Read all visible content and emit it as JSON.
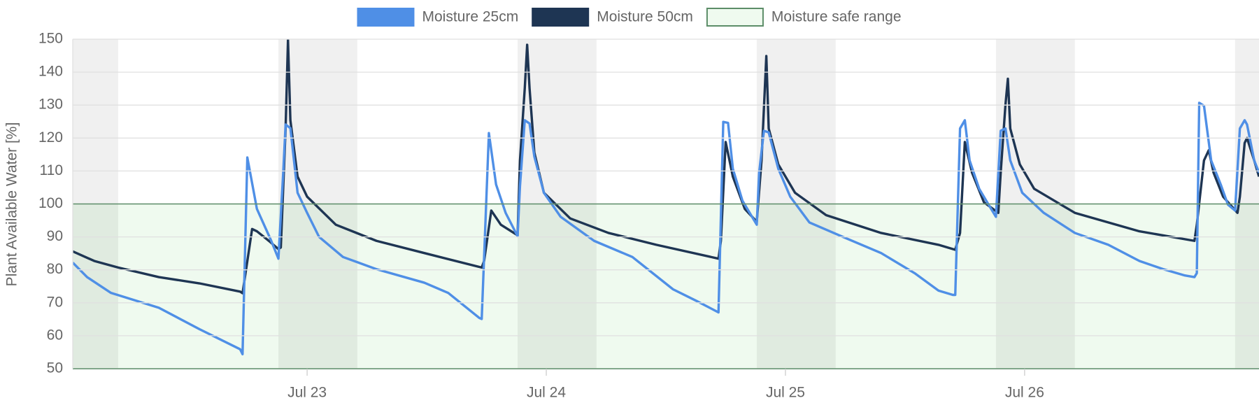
{
  "chart_data": {
    "type": "line",
    "y_label": "Plant Available Water [%]",
    "xlim": [
      22.02,
      26.98
    ],
    "xticks": [
      {
        "value": 23,
        "label": "Jul 23"
      },
      {
        "value": 24,
        "label": "Jul 24"
      },
      {
        "value": 25,
        "label": "Jul 25"
      },
      {
        "value": 26,
        "label": "Jul 26"
      }
    ],
    "ylim": [
      50,
      150
    ],
    "yticks": [
      50,
      60,
      70,
      80,
      90,
      100,
      110,
      120,
      130,
      140,
      150
    ],
    "grid": true,
    "legend": "top",
    "night_color": "rgba(0,0,0,0.06)",
    "night_bands": [
      [
        21.88,
        22.21
      ],
      [
        22.88,
        23.21
      ],
      [
        23.88,
        24.21
      ],
      [
        24.88,
        25.21
      ],
      [
        25.88,
        26.21
      ],
      [
        26.88,
        27.21
      ]
    ],
    "safe_range": {
      "name": "Moisture safe range",
      "color": "#effaef",
      "edge": "#5c8d68",
      "range": [
        50,
        100
      ]
    },
    "series": [
      {
        "name": "Moisture 25cm",
        "color": "#4f8fe6",
        "x": [
          22.02,
          22.08,
          22.18,
          22.38,
          22.55,
          22.72,
          22.73,
          22.75,
          22.79,
          22.85,
          22.88,
          22.9,
          22.91,
          22.93,
          22.96,
          23.0,
          23.05,
          23.15,
          23.29,
          23.49,
          23.59,
          23.72,
          23.73,
          23.76,
          23.79,
          23.83,
          23.88,
          23.89,
          23.91,
          23.93,
          23.95,
          23.99,
          24.06,
          24.2,
          24.36,
          24.53,
          24.63,
          24.72,
          24.74,
          24.76,
          24.78,
          24.82,
          24.88,
          24.89,
          24.91,
          24.93,
          24.97,
          25.02,
          25.1,
          25.24,
          25.4,
          25.54,
          25.64,
          25.7,
          25.71,
          25.73,
          25.75,
          25.77,
          25.81,
          25.86,
          25.88,
          25.9,
          25.92,
          25.94,
          25.99,
          26.08,
          26.21,
          26.35,
          26.48,
          26.58,
          26.67,
          26.71,
          26.72,
          26.73,
          26.75,
          26.78,
          26.82,
          26.85,
          26.88,
          26.9,
          26.92,
          26.93,
          26.96,
          26.98
        ],
        "values": [
          82.2,
          77.8,
          73,
          68.5,
          62,
          55.9,
          54.4,
          114.1,
          98.5,
          88.8,
          83.4,
          109.5,
          124.1,
          123,
          103.4,
          97.3,
          90,
          83.9,
          80.2,
          76.1,
          73,
          65.4,
          65.1,
          121.5,
          105.9,
          97.3,
          90.2,
          105.4,
          125.4,
          124.4,
          114.4,
          103.4,
          96.1,
          88.8,
          83.9,
          74.1,
          70.5,
          67.1,
          124.9,
          124.6,
          110.7,
          101,
          93.7,
          109.5,
          122.2,
          121.7,
          110.7,
          102.2,
          94.4,
          90,
          85.1,
          79,
          73.7,
          72.4,
          72.4,
          122.9,
          125.4,
          113.2,
          104.6,
          98.5,
          96.1,
          122.2,
          122.9,
          113.2,
          103.4,
          97.3,
          91.2,
          87.6,
          82.7,
          80.2,
          78.3,
          77.8,
          79,
          130.7,
          129.8,
          113.2,
          105.9,
          99.8,
          98,
          122.9,
          125.4,
          124.1,
          113.2,
          109.5
        ]
      },
      {
        "name": "Moisture 50cm",
        "color": "#1e3553",
        "x": [
          22.02,
          22.11,
          22.21,
          22.38,
          22.55,
          22.72,
          22.73,
          22.77,
          22.79,
          22.84,
          22.88,
          22.89,
          22.91,
          22.92,
          22.93,
          22.96,
          23.0,
          23.12,
          23.29,
          23.49,
          23.73,
          23.74,
          23.77,
          23.81,
          23.88,
          23.89,
          23.91,
          23.92,
          23.93,
          23.95,
          23.99,
          24.1,
          24.26,
          24.46,
          24.72,
          24.73,
          24.75,
          24.78,
          24.83,
          24.88,
          24.9,
          24.92,
          24.93,
          24.97,
          25.04,
          25.17,
          25.4,
          25.64,
          25.71,
          25.73,
          25.75,
          25.78,
          25.83,
          25.89,
          25.9,
          25.92,
          25.93,
          25.94,
          25.98,
          26.04,
          26.21,
          26.48,
          26.71,
          26.72,
          26.75,
          26.77,
          26.79,
          26.83,
          26.89,
          26.9,
          26.92,
          26.93,
          26.96,
          26.98
        ],
        "values": [
          85.6,
          82.7,
          80.7,
          77.8,
          75.9,
          73.4,
          72.9,
          92.4,
          91.7,
          88.8,
          86.3,
          86.8,
          122.9,
          149.8,
          125.4,
          108.3,
          102.2,
          93.7,
          88.8,
          85.1,
          80.7,
          82.7,
          98,
          93.7,
          90.5,
          113.2,
          135.1,
          148.3,
          135.1,
          115.6,
          103.4,
          95.6,
          91.2,
          87.6,
          83.4,
          88.8,
          118.8,
          108.3,
          98.5,
          94.6,
          113.2,
          144.9,
          122.9,
          112,
          103.4,
          96.6,
          91.2,
          87.6,
          86.1,
          91.2,
          118.8,
          109.5,
          100.5,
          97.3,
          109.5,
          130.2,
          138,
          122.9,
          112,
          104.6,
          97.3,
          91.7,
          88.8,
          93.7,
          113.2,
          116.3,
          109.5,
          102.2,
          97.3,
          102.2,
          118.5,
          120,
          113.2,
          108.3
        ]
      }
    ]
  }
}
